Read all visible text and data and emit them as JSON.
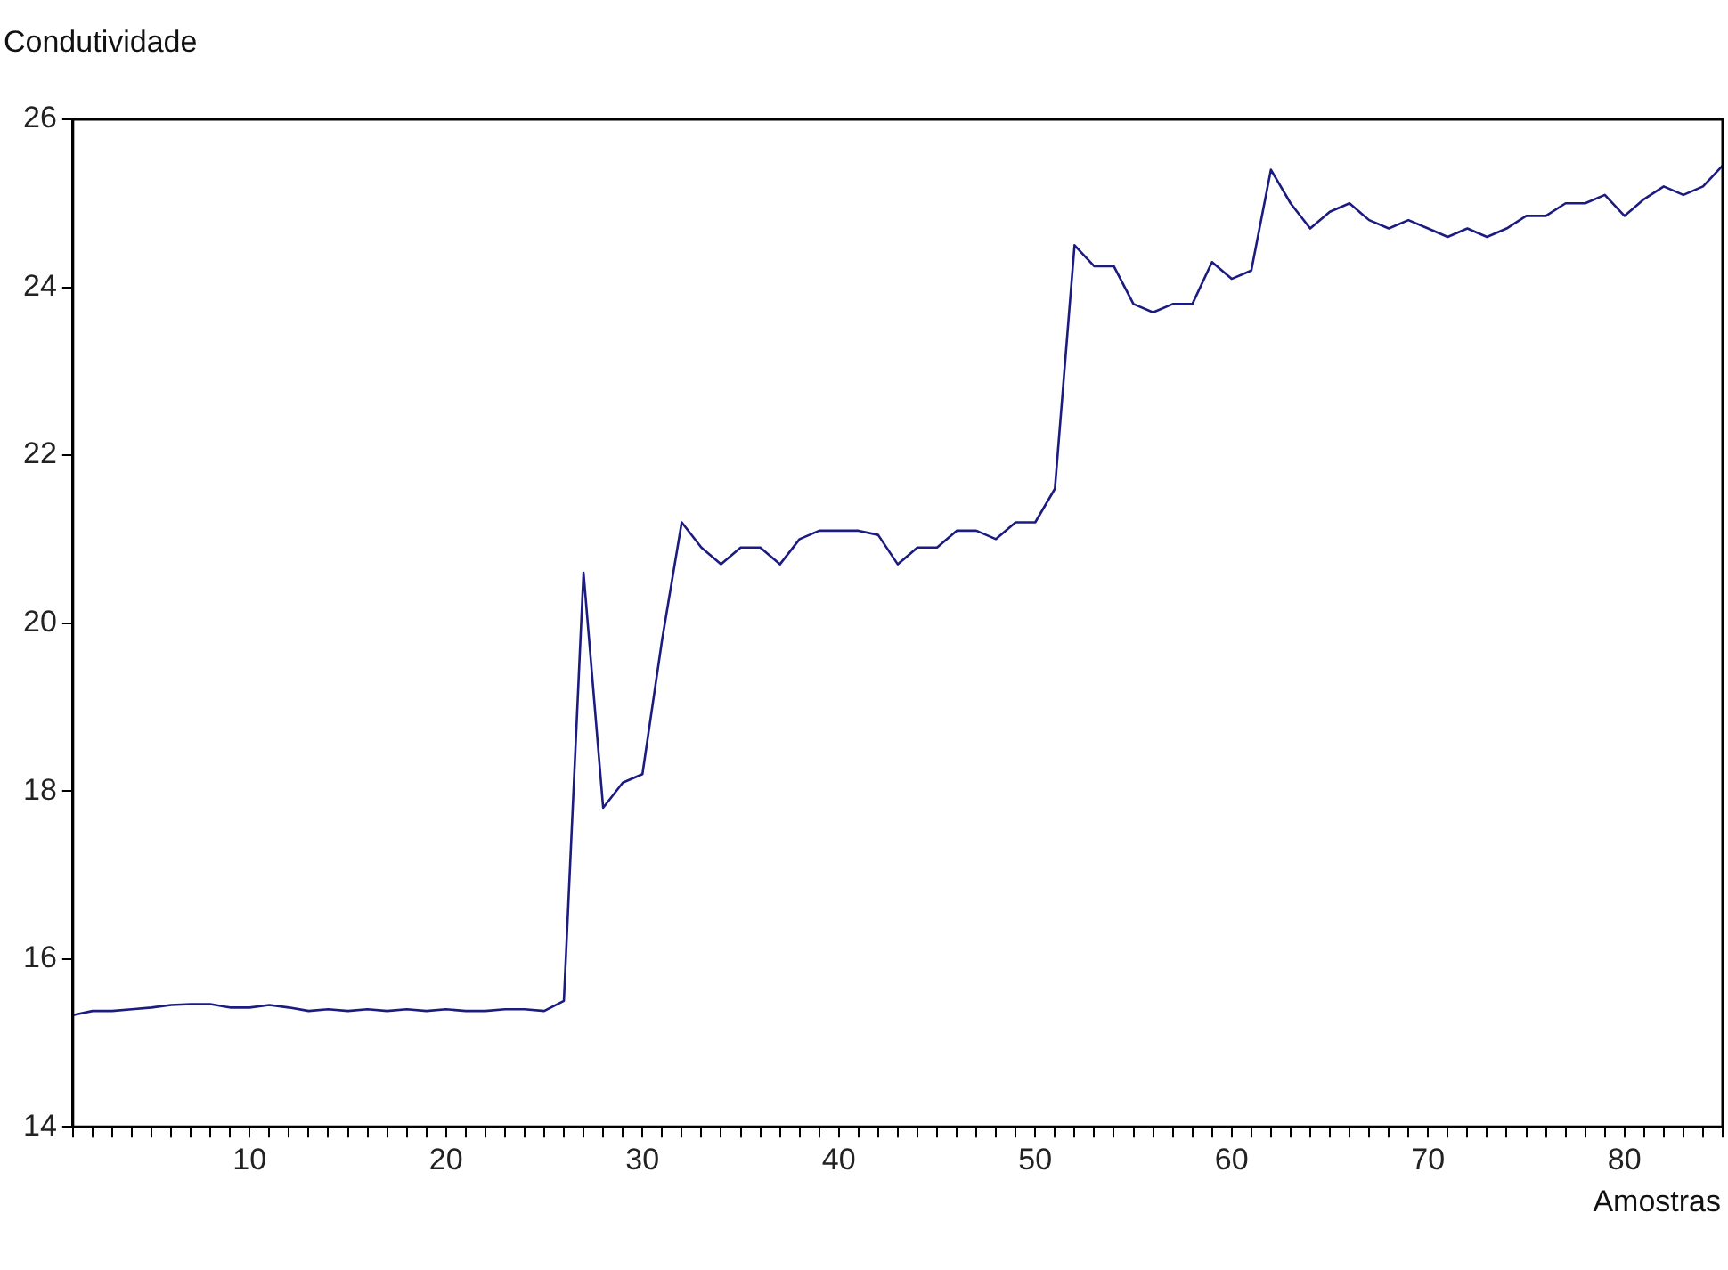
{
  "chart_data": {
    "type": "line",
    "ylabel": "Condutividade",
    "xlabel": "Amostras",
    "x": [
      1,
      2,
      3,
      4,
      5,
      6,
      7,
      8,
      9,
      10,
      11,
      12,
      13,
      14,
      15,
      16,
      17,
      18,
      19,
      20,
      21,
      22,
      23,
      24,
      25,
      26,
      27,
      28,
      29,
      30,
      31,
      32,
      33,
      34,
      35,
      36,
      37,
      38,
      39,
      40,
      41,
      42,
      43,
      44,
      45,
      46,
      47,
      48,
      49,
      50,
      51,
      52,
      53,
      54,
      55,
      56,
      57,
      58,
      59,
      60,
      61,
      62,
      63,
      64,
      65,
      66,
      67,
      68,
      69,
      70,
      71,
      72,
      73,
      74,
      75,
      76,
      77,
      78,
      79,
      80,
      81,
      82,
      83,
      84,
      85
    ],
    "series": [
      {
        "color": "#1c1c80",
        "values": [
          15.33,
          15.38,
          15.38,
          15.4,
          15.42,
          15.45,
          15.46,
          15.46,
          15.42,
          15.42,
          15.45,
          15.42,
          15.38,
          15.4,
          15.38,
          15.4,
          15.38,
          15.4,
          15.38,
          15.4,
          15.38,
          15.38,
          15.4,
          15.4,
          15.38,
          15.5,
          20.6,
          17.8,
          18.1,
          18.2,
          19.8,
          21.2,
          20.9,
          20.7,
          20.9,
          20.9,
          20.7,
          21.0,
          21.1,
          21.1,
          21.1,
          21.05,
          20.7,
          20.9,
          20.9,
          21.1,
          21.1,
          21.0,
          21.2,
          21.2,
          21.6,
          24.5,
          24.25,
          24.25,
          23.8,
          23.7,
          23.8,
          23.8,
          24.3,
          24.1,
          24.2,
          25.4,
          25.0,
          24.7,
          24.9,
          25.0,
          24.8,
          24.7,
          24.8,
          24.7,
          24.6,
          24.7,
          24.6,
          24.7,
          24.85,
          24.85,
          25.0,
          25.0,
          25.1,
          24.85,
          25.05,
          25.2,
          25.1,
          25.2,
          25.45
        ]
      }
    ],
    "xlim": [
      1,
      85
    ],
    "xticks": [
      {
        "value": 1,
        "label": null
      },
      {
        "value": 2,
        "label": null
      },
      {
        "value": 3,
        "label": null
      },
      {
        "value": 4,
        "label": null
      },
      {
        "value": 5,
        "label": null
      },
      {
        "value": 6,
        "label": null
      },
      {
        "value": 7,
        "label": null
      },
      {
        "value": 8,
        "label": null
      },
      {
        "value": 9,
        "label": null
      },
      10,
      {
        "value": 11,
        "label": null
      },
      {
        "value": 12,
        "label": null
      },
      {
        "value": 13,
        "label": null
      },
      {
        "value": 14,
        "label": null
      },
      {
        "value": 15,
        "label": null
      },
      {
        "value": 16,
        "label": null
      },
      {
        "value": 17,
        "label": null
      },
      {
        "value": 18,
        "label": null
      },
      {
        "value": 19,
        "label": null
      },
      20,
      {
        "value": 21,
        "label": null
      },
      {
        "value": 22,
        "label": null
      },
      {
        "value": 23,
        "label": null
      },
      {
        "value": 24,
        "label": null
      },
      {
        "value": 25,
        "label": null
      },
      {
        "value": 26,
        "label": null
      },
      {
        "value": 27,
        "label": null
      },
      {
        "value": 28,
        "label": null
      },
      {
        "value": 29,
        "label": null
      },
      30,
      {
        "value": 31,
        "label": null
      },
      {
        "value": 32,
        "label": null
      },
      {
        "value": 33,
        "label": null
      },
      {
        "value": 34,
        "label": null
      },
      {
        "value": 35,
        "label": null
      },
      {
        "value": 36,
        "label": null
      },
      {
        "value": 37,
        "label": null
      },
      {
        "value": 38,
        "label": null
      },
      {
        "value": 39,
        "label": null
      },
      40,
      {
        "value": 41,
        "label": null
      },
      {
        "value": 42,
        "label": null
      },
      {
        "value": 43,
        "label": null
      },
      {
        "value": 44,
        "label": null
      },
      {
        "value": 45,
        "label": null
      },
      {
        "value": 46,
        "label": null
      },
      {
        "value": 47,
        "label": null
      },
      {
        "value": 48,
        "label": null
      },
      {
        "value": 49,
        "label": null
      },
      50,
      {
        "value": 51,
        "label": null
      },
      {
        "value": 52,
        "label": null
      },
      {
        "value": 53,
        "label": null
      },
      {
        "value": 54,
        "label": null
      },
      {
        "value": 55,
        "label": null
      },
      {
        "value": 56,
        "label": null
      },
      {
        "value": 57,
        "label": null
      },
      {
        "value": 58,
        "label": null
      },
      {
        "value": 59,
        "label": null
      },
      60,
      {
        "value": 61,
        "label": null
      },
      {
        "value": 62,
        "label": null
      },
      {
        "value": 63,
        "label": null
      },
      {
        "value": 64,
        "label": null
      },
      {
        "value": 65,
        "label": null
      },
      {
        "value": 66,
        "label": null
      },
      {
        "value": 67,
        "label": null
      },
      {
        "value": 68,
        "label": null
      },
      {
        "value": 69,
        "label": null
      },
      70,
      {
        "value": 71,
        "label": null
      },
      {
        "value": 72,
        "label": null
      },
      {
        "value": 73,
        "label": null
      },
      {
        "value": 74,
        "label": null
      },
      {
        "value": 75,
        "label": null
      },
      {
        "value": 76,
        "label": null
      },
      {
        "value": 77,
        "label": null
      },
      {
        "value": 78,
        "label": null
      },
      {
        "value": 79,
        "label": null
      },
      80,
      {
        "value": 81,
        "label": null
      },
      {
        "value": 82,
        "label": null
      },
      {
        "value": 83,
        "label": null
      },
      {
        "value": 84,
        "label": null
      },
      {
        "value": 85,
        "label": null
      }
    ],
    "ylim": [
      14,
      26
    ],
    "yticks": [
      14,
      16,
      18,
      20,
      22,
      24,
      26
    ],
    "line_style": "solid"
  }
}
